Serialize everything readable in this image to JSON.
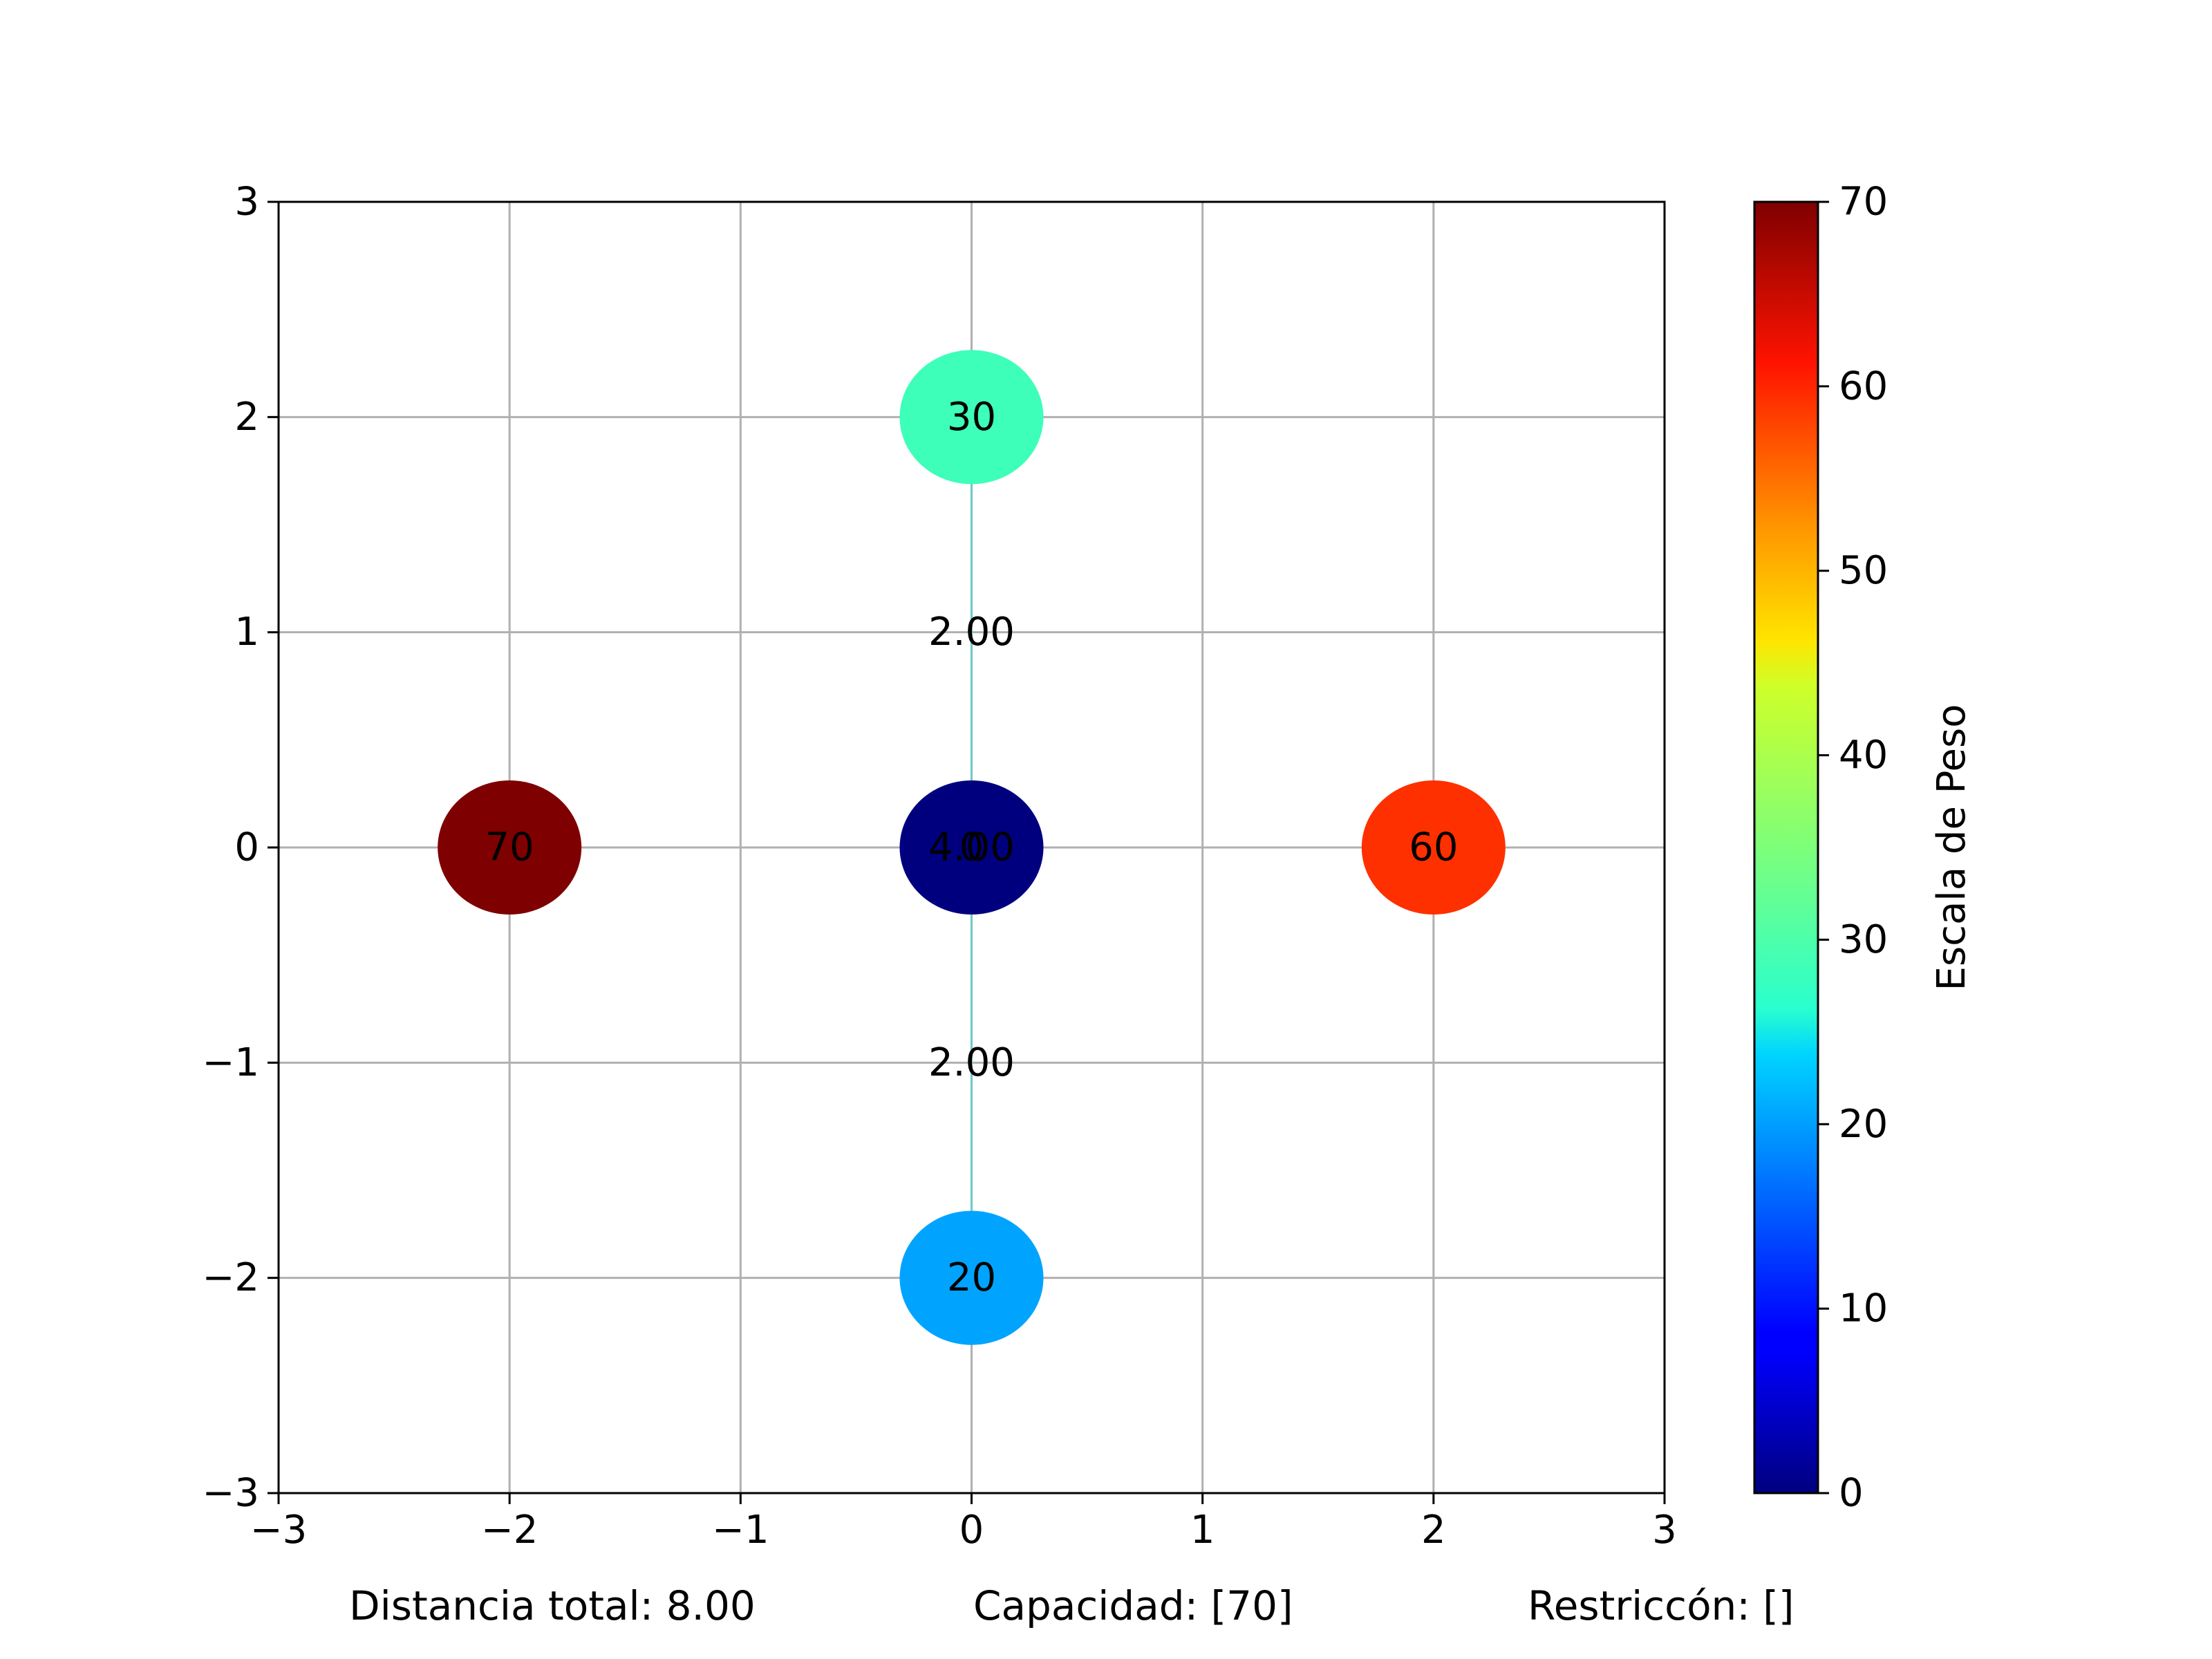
{
  "chart_data": {
    "type": "scatter",
    "title": "",
    "xlabel": "",
    "ylabel": "",
    "xlim": [
      -3,
      3
    ],
    "ylim": [
      -3,
      3
    ],
    "xticks": [
      "−3",
      "−2",
      "−1",
      "0",
      "1",
      "2",
      "3"
    ],
    "yticks": [
      "−3",
      "−2",
      "−1",
      "0",
      "1",
      "2",
      "3"
    ],
    "grid": true,
    "nodes": [
      {
        "x": 0,
        "y": 0,
        "weight": 0,
        "label": "0",
        "color": "#00007f"
      },
      {
        "x": 0,
        "y": 2,
        "weight": 30,
        "label": "30",
        "color": "#3dffb9"
      },
      {
        "x": 0,
        "y": -2,
        "weight": 20,
        "label": "20",
        "color": "#00a4ff"
      },
      {
        "x": -2,
        "y": 0,
        "weight": 70,
        "label": "70",
        "color": "#7f0000"
      },
      {
        "x": 2,
        "y": 0,
        "weight": 60,
        "label": "60",
        "color": "#ff3000"
      }
    ],
    "edges": [
      {
        "from": [
          0,
          0
        ],
        "to": [
          0,
          2
        ],
        "label": "2.00",
        "color": "#20e0e8"
      },
      {
        "from": [
          0,
          2
        ],
        "to": [
          0,
          0
        ],
        "label": "2.00",
        "color": "#20e0e8"
      },
      {
        "from": [
          0,
          0
        ],
        "to": [
          0,
          -2
        ],
        "label": "2.00",
        "color": "#20e0e8"
      },
      {
        "from": [
          0,
          -2
        ],
        "to": [
          0,
          0
        ],
        "label": "2.00",
        "color": "#20e0e8"
      }
    ],
    "center_overlay_label": "4.00",
    "colorbar": {
      "label": "Escala de Peso",
      "colormap": "jet",
      "min": 0,
      "max": 70,
      "ticks": [
        "0",
        "10",
        "20",
        "30",
        "40",
        "50",
        "60",
        "70"
      ]
    }
  },
  "footer": {
    "distance": "Distancia total: 8.00",
    "capacity": "Capacidad: [70]",
    "restriction": "Restriccón: []"
  }
}
